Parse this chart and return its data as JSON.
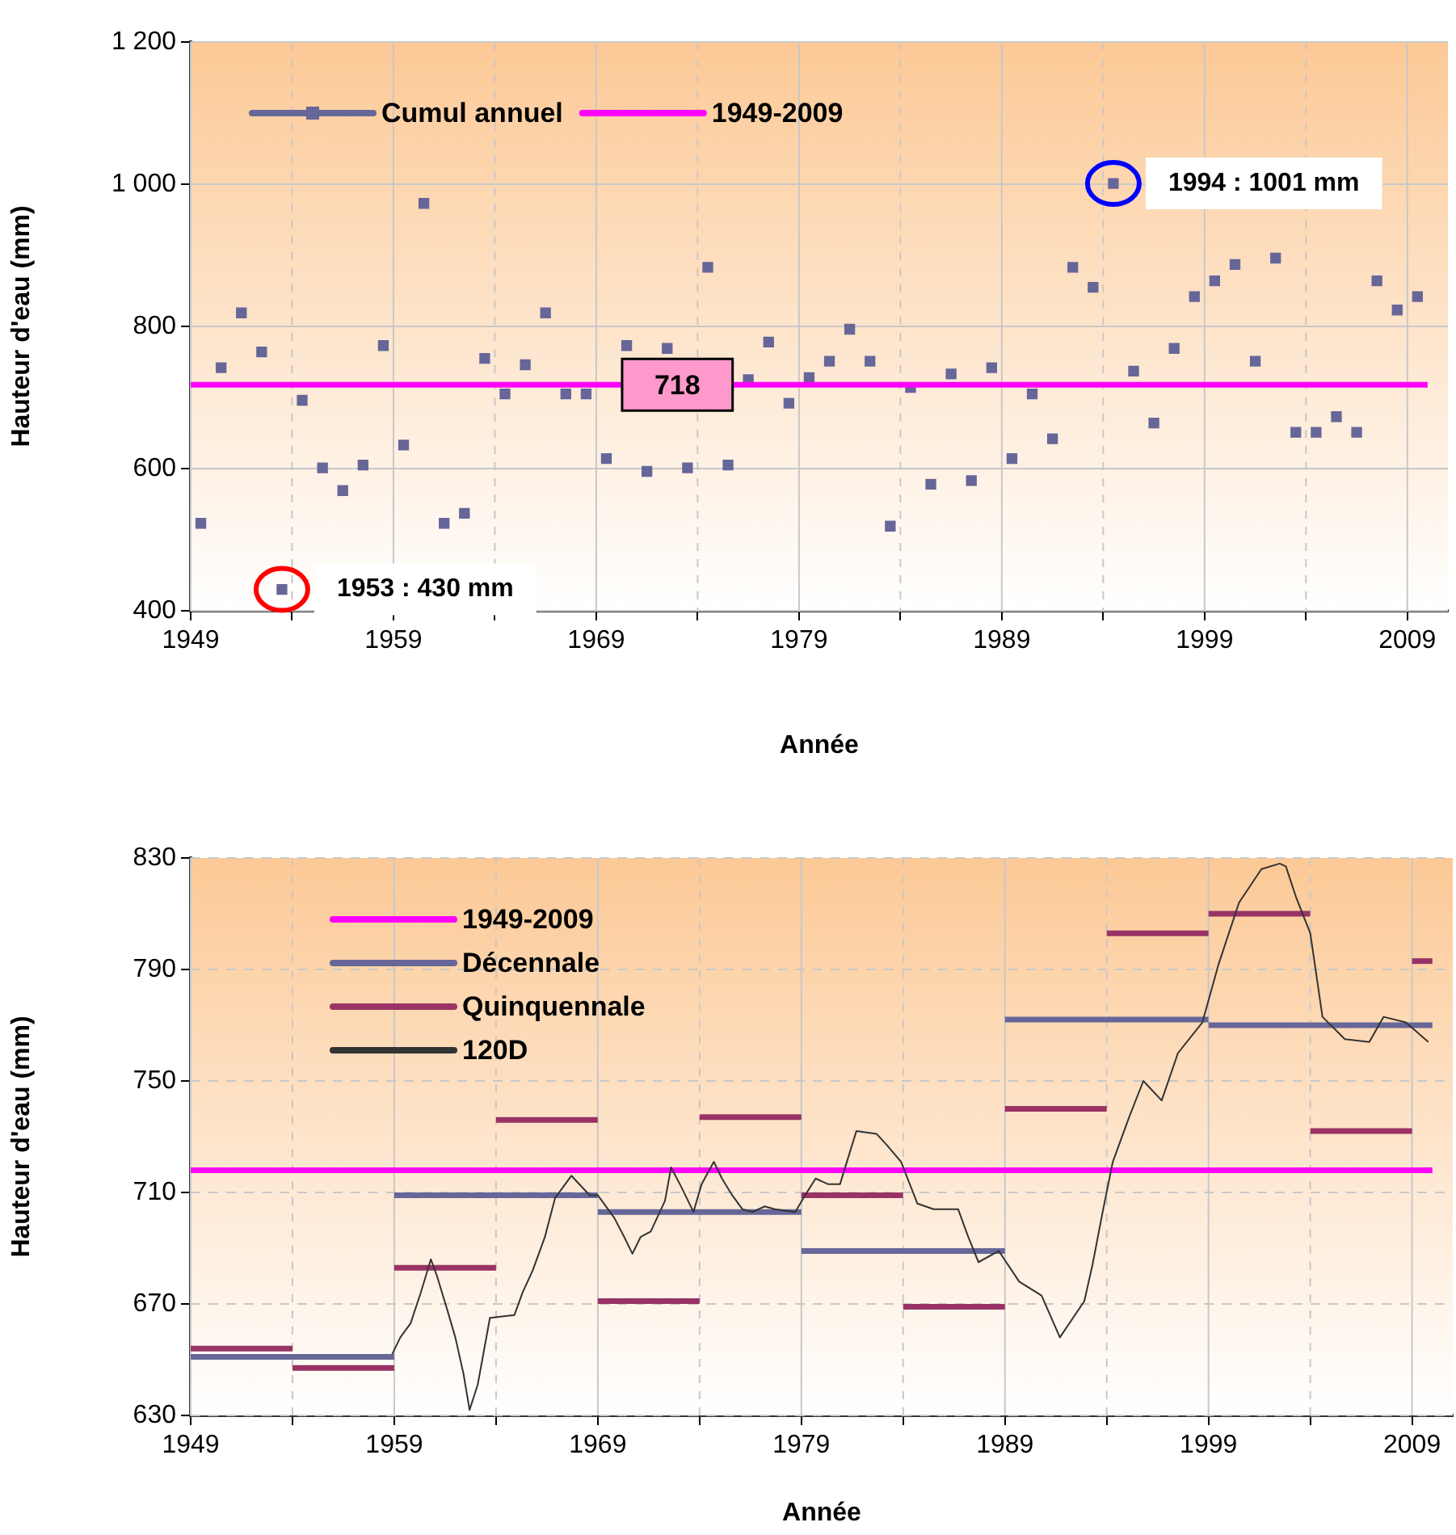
{
  "chart_data": [
    {
      "type": "scatter",
      "xlabel": "Année",
      "ylabel": "Hauteur d'eau (mm)",
      "xlim": [
        1949,
        2011
      ],
      "xticks": [
        1949,
        {
          "value": 1954,
          "label": null
        },
        1959,
        {
          "value": 1964,
          "label": null
        },
        1969,
        {
          "value": 1974,
          "label": null
        },
        1979,
        {
          "value": 1984,
          "label": null
        },
        1989,
        {
          "value": 1994,
          "label": null
        },
        1999,
        {
          "value": 2004,
          "label": null
        },
        2009
      ],
      "ylim": [
        400,
        1200
      ],
      "yticks": [
        400,
        600,
        800,
        {
          "value": 1000,
          "label": "1 000"
        },
        {
          "value": 1200,
          "label": "1 200"
        }
      ],
      "grid": true,
      "legend": "top left",
      "marker": "square",
      "x": [
        1949.5,
        1950.5,
        1951.5,
        1952.5,
        1953.5,
        1954.5,
        1955.5,
        1956.5,
        1957.5,
        1958.5,
        1959.5,
        1960.5,
        1961.5,
        1962.5,
        1963.5,
        1964.5,
        1965.5,
        1966.5,
        1967.5,
        1968.5,
        1969.5,
        1970.5,
        1971.5,
        1972.5,
        1973.5,
        1974.5,
        1975.5,
        1976.5,
        1977.5,
        1978.5,
        1979.5,
        1980.5,
        1981.5,
        1982.5,
        1983.5,
        1984.5,
        1985.5,
        1986.5,
        1987.5,
        1988.5,
        1989.5,
        1990.5,
        1991.5,
        1992.5,
        1993.5,
        1994.5,
        1995.5,
        1996.5,
        1997.5,
        1998.5,
        1999.5,
        2000.5,
        2001.5,
        2002.5,
        2003.5,
        2004.5,
        2005.5,
        2006.5,
        2007.5,
        2008.5,
        2009.5
      ],
      "series": [
        {
          "name": "Cumul annuel",
          "color": "#666699",
          "values": [
            523,
            742,
            819,
            764,
            430,
            696,
            601,
            569,
            605,
            773,
            633,
            973,
            523,
            537,
            755,
            705,
            746,
            819,
            705,
            705,
            614,
            773,
            596,
            769,
            601,
            883,
            605,
            725,
            778,
            692,
            728,
            751,
            796,
            751,
            519,
            714,
            578,
            733,
            583,
            742,
            614,
            705,
            642,
            883,
            855,
            1001,
            737,
            664,
            769,
            842,
            864,
            887,
            751,
            896,
            651,
            651,
            673,
            651,
            864,
            823,
            842
          ]
        },
        {
          "name": "1949-2009",
          "type": "line",
          "marker": "none",
          "color": "#ff00ff",
          "x": [
            1949,
            2010
          ],
          "values": [
            718,
            718
          ]
        }
      ],
      "annotations": [
        {
          "text": "1953 : 430 mm",
          "x": 1953.5,
          "y": 430
        },
        {
          "text": "1994 : 1001 mm",
          "x": 1994.5,
          "y": 1001
        },
        {
          "text": "718",
          "x": 1973,
          "y": 718
        }
      ]
    },
    {
      "type": "line",
      "xlabel": "Année",
      "ylabel": "Hauteur d'eau (mm)",
      "xlim": [
        1949,
        2011
      ],
      "xticks": [
        1949,
        {
          "value": 1954,
          "label": null
        },
        1959,
        {
          "value": 1964,
          "label": null
        },
        1969,
        {
          "value": 1974,
          "label": null
        },
        1979,
        {
          "value": 1984,
          "label": null
        },
        1989,
        {
          "value": 1994,
          "label": null
        },
        1999,
        {
          "value": 2004,
          "label": null
        },
        2009
      ],
      "ylim": [
        630,
        830
      ],
      "yticks": [
        630,
        670,
        710,
        750,
        790,
        830
      ],
      "grid": true,
      "legend": "top left",
      "series": [
        {
          "name": "1949-2009",
          "color": "#ff00ff",
          "x": [
            1949,
            2010
          ],
          "values": [
            718,
            718
          ]
        },
        {
          "name": "Décennale",
          "color": "#666699",
          "x": [
            1949,
            1959
          ],
          "values": [
            651,
            651
          ]
        },
        {
          "color": "#666699",
          "x": [
            1959,
            1969
          ],
          "values": [
            709,
            709
          ]
        },
        {
          "color": "#666699",
          "x": [
            1969,
            1979
          ],
          "values": [
            703,
            703
          ]
        },
        {
          "color": "#666699",
          "x": [
            1979,
            1989
          ],
          "values": [
            689,
            689
          ]
        },
        {
          "color": "#666699",
          "x": [
            1989,
            1999
          ],
          "values": [
            772,
            772
          ]
        },
        {
          "color": "#666699",
          "x": [
            1999,
            2010
          ],
          "values": [
            770,
            770
          ]
        },
        {
          "name": "Quinquennale",
          "color": "#993366",
          "x": [
            1949,
            1954
          ],
          "values": [
            654,
            654
          ]
        },
        {
          "color": "#993366",
          "x": [
            1954,
            1959
          ],
          "values": [
            647,
            647
          ]
        },
        {
          "color": "#993366",
          "x": [
            1959,
            1964
          ],
          "values": [
            683,
            683
          ]
        },
        {
          "color": "#993366",
          "x": [
            1964,
            1969
          ],
          "values": [
            736,
            736
          ]
        },
        {
          "color": "#993366",
          "x": [
            1969,
            1974
          ],
          "values": [
            671,
            671
          ]
        },
        {
          "color": "#993366",
          "x": [
            1974,
            1979
          ],
          "values": [
            737,
            737
          ]
        },
        {
          "color": "#993366",
          "x": [
            1979,
            1984
          ],
          "values": [
            709,
            709
          ]
        },
        {
          "color": "#993366",
          "x": [
            1984,
            1989
          ],
          "values": [
            669,
            669
          ]
        },
        {
          "color": "#993366",
          "x": [
            1989,
            1994
          ],
          "values": [
            740,
            740
          ]
        },
        {
          "color": "#993366",
          "x": [
            1994,
            1999
          ],
          "values": [
            803,
            803
          ]
        },
        {
          "color": "#993366",
          "x": [
            1999,
            2004
          ],
          "values": [
            810,
            810
          ]
        },
        {
          "color": "#993366",
          "x": [
            2004,
            2009
          ],
          "values": [
            732,
            732
          ]
        },
        {
          "color": "#993366",
          "x": [
            2009,
            2010
          ],
          "values": [
            793,
            793
          ]
        },
        {
          "name": "120D",
          "color": "#333333",
          "x": [
            1958.9,
            1959.3,
            1959.8,
            1960.3,
            1960.8,
            1961.1,
            1961.6,
            1962.0,
            1962.4,
            1962.7,
            1963.1,
            1963.7,
            1964.9,
            1965.3,
            1965.8,
            1966.4,
            1966.9,
            1967.7,
            1968.6,
            1969.0,
            1969.8,
            1970.3,
            1970.7,
            1971.1,
            1971.6,
            1972.3,
            1972.6,
            1973.1,
            1973.7,
            1974.1,
            1974.7,
            1975.1,
            1975.6,
            1976.1,
            1976.6,
            1977.2,
            1977.7,
            1978.7,
            1979.1,
            1979.7,
            1980.3,
            1980.9,
            1981.7,
            1982.7,
            1983.2,
            1983.9,
            1984.7,
            1985.5,
            1986.7,
            1987.2,
            1987.7,
            1988.7,
            1989.7,
            1990.8,
            1991.7,
            1992.9,
            1993.3,
            1993.8,
            1994.3,
            1995.1,
            1995.8,
            1996.7,
            1997.5,
            1998.7,
            1999.5,
            2000.5,
            2001.6,
            2002.5,
            2002.8,
            2003.3,
            2004.0,
            2004.6,
            2005.7,
            2006.9,
            2007.6,
            2008.7,
            2009.8
          ],
          "values": [
            652,
            658,
            663,
            674,
            686,
            680,
            668,
            658,
            645,
            632,
            641,
            665,
            666,
            674,
            682,
            694,
            708,
            716,
            709,
            709,
            701,
            694,
            688,
            694,
            696,
            707,
            719,
            712,
            703,
            713,
            721,
            715,
            709,
            704,
            703,
            705,
            704,
            703,
            708,
            715,
            713,
            713,
            732,
            731,
            727,
            721,
            706,
            704,
            704,
            694,
            685,
            689,
            678,
            673,
            658,
            671,
            684,
            703,
            721,
            737,
            750,
            743,
            760,
            771,
            792,
            814,
            826,
            828,
            827,
            816,
            803,
            773,
            765,
            764,
            773,
            771,
            764
          ]
        }
      ]
    }
  ]
}
